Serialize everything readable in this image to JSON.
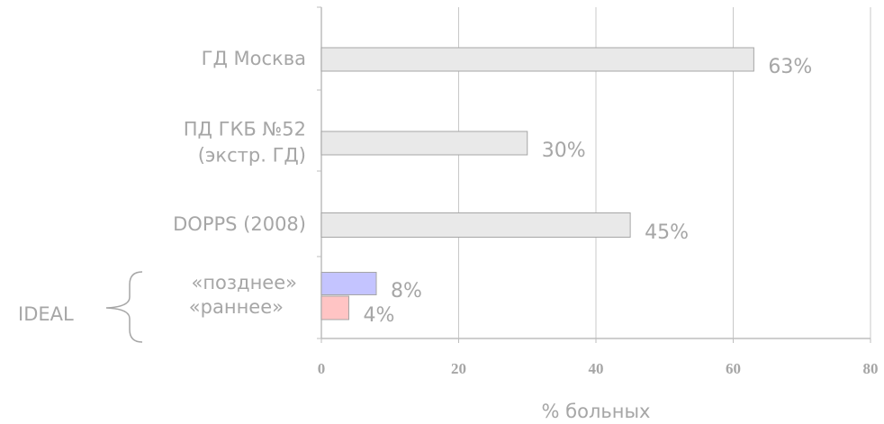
{
  "chart_data": {
    "type": "hbar",
    "categories": [
      "ГД Москва",
      "ПД ГКБ №52\n(экстр. ГД)",
      "DOPPS (2008)",
      "«позднее»",
      "«раннее»"
    ],
    "values": [
      63,
      30,
      45,
      8,
      4
    ],
    "value_labels": [
      "63%",
      "30%",
      "45%",
      "8%",
      "4%"
    ],
    "colors": [
      "#e9e9e9",
      "#e9e9e9",
      "#e9e9e9",
      "#c4c4ff",
      "#ffc4c4"
    ],
    "group_label": "IDEAL",
    "xlabel": "% больных",
    "xlim": [
      0,
      80
    ],
    "xticks": [
      0,
      20,
      40,
      60,
      80
    ],
    "grid": true
  }
}
